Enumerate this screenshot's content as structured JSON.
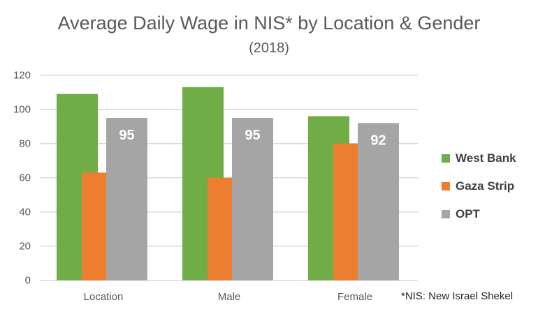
{
  "chart_data": {
    "type": "bar",
    "title": "Average Daily Wage in NIS* by Location & Gender",
    "subtitle": "(2018)",
    "categories": [
      "Location",
      "Male",
      "Female"
    ],
    "series": [
      {
        "name": "West Bank",
        "color": "#70AD47",
        "values": [
          109,
          113,
          96
        ]
      },
      {
        "name": "Gaza Strip",
        "color": "#ED7D31",
        "values": [
          63,
          60,
          80
        ]
      },
      {
        "name": "OPT",
        "color": "#A5A5A5",
        "values": [
          95,
          95,
          92
        ],
        "data_labels": [
          "95",
          "95",
          "92"
        ]
      }
    ],
    "ylim": [
      0,
      120
    ],
    "yticks": [
      "0",
      "20",
      "40",
      "60",
      "80",
      "100",
      "120"
    ],
    "grid": true,
    "legend": "right",
    "footnote": "*NIS: New Israel Shekel"
  }
}
